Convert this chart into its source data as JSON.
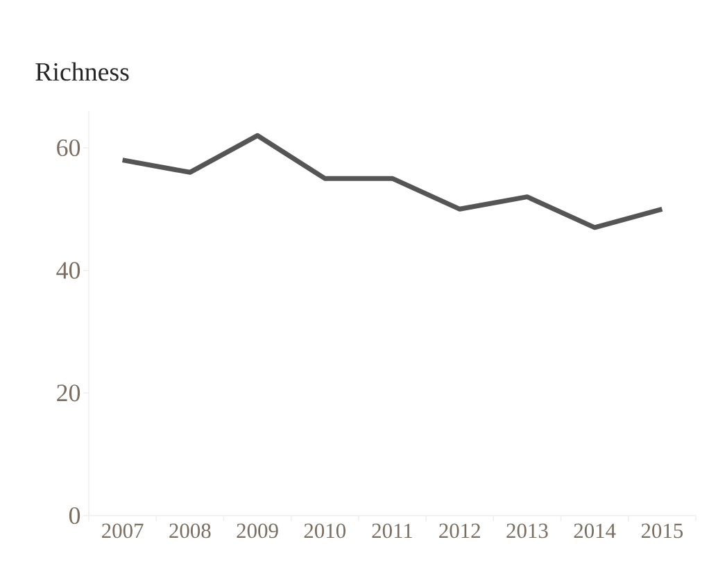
{
  "chart_data": {
    "type": "line",
    "title": "Richness",
    "categories": [
      "2007",
      "2008",
      "2009",
      "2010",
      "2011",
      "2012",
      "2013",
      "2014",
      "2015"
    ],
    "series": [
      {
        "color": "#555555",
        "values": [
          58,
          56,
          62,
          55,
          55,
          50,
          52,
          47,
          50
        ]
      }
    ],
    "ylim": [
      0,
      66
    ],
    "yticks": [
      0,
      20,
      40,
      60
    ],
    "grid": false,
    "legend": false,
    "marker": "none",
    "line_style": "solid"
  }
}
